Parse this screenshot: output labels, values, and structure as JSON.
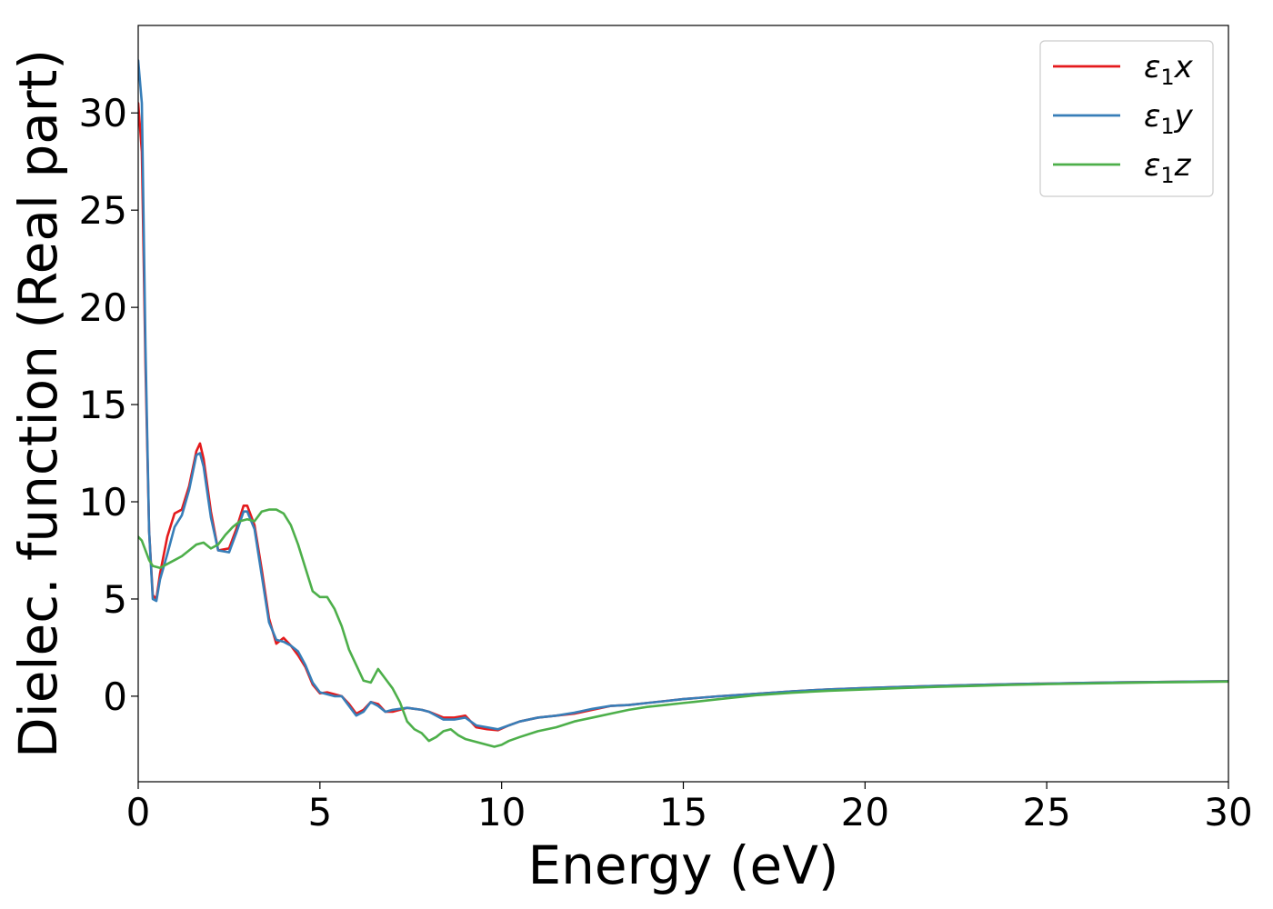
{
  "chart_data": {
    "type": "line",
    "title": "",
    "xlabel": "Energy (eV)",
    "ylabel": "Dielec. function (Real part)",
    "xlim": [
      0,
      30
    ],
    "ylim": [
      -4.4,
      34.5
    ],
    "xticks": [
      0,
      5,
      10,
      15,
      20,
      25,
      30
    ],
    "yticks": [
      0,
      5,
      10,
      15,
      20,
      25,
      30
    ],
    "grid": false,
    "legend": {
      "position": "top-right"
    },
    "series": [
      {
        "name": "ε₁x",
        "label_main": "ε",
        "label_sub": "1",
        "label_var": "x",
        "color": "#e41a1c",
        "x": [
          0.0,
          0.1,
          0.2,
          0.3,
          0.4,
          0.5,
          0.6,
          0.8,
          1.0,
          1.2,
          1.4,
          1.6,
          1.7,
          1.8,
          2.0,
          2.2,
          2.5,
          2.7,
          2.9,
          3.0,
          3.2,
          3.4,
          3.6,
          3.8,
          4.0,
          4.2,
          4.4,
          4.6,
          4.8,
          5.0,
          5.2,
          5.4,
          5.6,
          5.8,
          6.0,
          6.2,
          6.4,
          6.6,
          6.8,
          7.0,
          7.4,
          7.8,
          8.0,
          8.4,
          8.7,
          9.0,
          9.3,
          9.6,
          9.9,
          10.2,
          10.5,
          11.0,
          11.5,
          12.0,
          12.5,
          13.0,
          13.5,
          14.0,
          14.5,
          15.0,
          16.0,
          17.0,
          18.0,
          19.0,
          20.0,
          21.0,
          22.0,
          23.0,
          24.0,
          25.0,
          26.0,
          27.0,
          28.0,
          29.0,
          30.0
        ],
        "y": [
          30.5,
          28.0,
          17.0,
          8.5,
          5.2,
          5.0,
          6.3,
          8.2,
          9.4,
          9.6,
          10.8,
          12.6,
          13.0,
          12.2,
          9.5,
          7.5,
          7.6,
          8.6,
          9.8,
          9.8,
          8.8,
          6.5,
          4.0,
          2.7,
          3.0,
          2.6,
          2.1,
          1.5,
          0.6,
          0.15,
          0.2,
          0.1,
          0.0,
          -0.4,
          -0.9,
          -0.7,
          -0.3,
          -0.4,
          -0.8,
          -0.8,
          -0.6,
          -0.7,
          -0.8,
          -1.1,
          -1.1,
          -1.0,
          -1.6,
          -1.7,
          -1.75,
          -1.5,
          -1.3,
          -1.1,
          -1.0,
          -0.9,
          -0.7,
          -0.5,
          -0.45,
          -0.35,
          -0.25,
          -0.15,
          0.0,
          0.12,
          0.25,
          0.35,
          0.42,
          0.48,
          0.53,
          0.58,
          0.62,
          0.65,
          0.68,
          0.71,
          0.73,
          0.75,
          0.77
        ]
      },
      {
        "name": "ε₁y",
        "label_main": "ε",
        "label_sub": "1",
        "label_var": "y",
        "color": "#377eb8",
        "x": [
          0.0,
          0.1,
          0.2,
          0.3,
          0.4,
          0.5,
          0.6,
          0.8,
          1.0,
          1.2,
          1.4,
          1.6,
          1.7,
          1.8,
          2.0,
          2.2,
          2.5,
          2.7,
          2.9,
          3.0,
          3.2,
          3.4,
          3.6,
          3.8,
          4.0,
          4.2,
          4.4,
          4.6,
          4.8,
          5.0,
          5.2,
          5.4,
          5.6,
          5.8,
          6.0,
          6.2,
          6.4,
          6.6,
          6.8,
          7.0,
          7.4,
          7.8,
          8.0,
          8.4,
          8.7,
          9.0,
          9.3,
          9.6,
          9.9,
          10.2,
          10.5,
          11.0,
          11.5,
          12.0,
          12.5,
          13.0,
          13.5,
          14.0,
          14.5,
          15.0,
          16.0,
          17.0,
          18.0,
          19.0,
          20.0,
          21.0,
          22.0,
          23.0,
          24.0,
          25.0,
          26.0,
          27.0,
          28.0,
          29.0,
          30.0
        ],
        "y": [
          32.7,
          30.5,
          18.0,
          8.5,
          5.0,
          4.9,
          6.0,
          7.3,
          8.7,
          9.3,
          10.6,
          12.4,
          12.5,
          11.8,
          9.2,
          7.5,
          7.4,
          8.4,
          9.5,
          9.5,
          8.6,
          6.2,
          3.8,
          2.9,
          2.8,
          2.6,
          2.3,
          1.6,
          0.7,
          0.2,
          0.1,
          0.0,
          0.0,
          -0.5,
          -1.0,
          -0.8,
          -0.3,
          -0.5,
          -0.8,
          -0.7,
          -0.6,
          -0.7,
          -0.8,
          -1.2,
          -1.2,
          -1.1,
          -1.5,
          -1.6,
          -1.7,
          -1.5,
          -1.3,
          -1.1,
          -1.0,
          -0.85,
          -0.65,
          -0.5,
          -0.45,
          -0.35,
          -0.25,
          -0.15,
          0.0,
          0.12,
          0.25,
          0.35,
          0.42,
          0.48,
          0.53,
          0.58,
          0.62,
          0.65,
          0.68,
          0.71,
          0.73,
          0.75,
          0.77
        ]
      },
      {
        "name": "ε₁z",
        "label_main": "ε",
        "label_sub": "1",
        "label_var": "z",
        "color": "#4daf4a",
        "x": [
          0.0,
          0.1,
          0.2,
          0.3,
          0.4,
          0.6,
          0.8,
          1.0,
          1.2,
          1.4,
          1.6,
          1.8,
          2.0,
          2.2,
          2.4,
          2.6,
          2.8,
          3.0,
          3.2,
          3.4,
          3.6,
          3.8,
          4.0,
          4.2,
          4.4,
          4.6,
          4.8,
          5.0,
          5.2,
          5.4,
          5.6,
          5.8,
          6.0,
          6.2,
          6.4,
          6.6,
          6.8,
          7.0,
          7.2,
          7.4,
          7.6,
          7.8,
          8.0,
          8.2,
          8.4,
          8.6,
          8.8,
          9.0,
          9.2,
          9.4,
          9.6,
          9.8,
          10.0,
          10.2,
          10.5,
          11.0,
          11.5,
          12.0,
          12.5,
          13.0,
          13.5,
          14.0,
          14.5,
          15.0,
          16.0,
          17.0,
          18.0,
          19.0,
          20.0,
          21.0,
          22.0,
          23.0,
          24.0,
          25.0,
          26.0,
          27.0,
          28.0,
          29.0,
          30.0
        ],
        "y": [
          8.2,
          8.0,
          7.5,
          7.0,
          6.7,
          6.6,
          6.8,
          7.0,
          7.2,
          7.5,
          7.8,
          7.9,
          7.6,
          7.8,
          8.3,
          8.7,
          9.0,
          9.1,
          9.0,
          9.5,
          9.6,
          9.6,
          9.4,
          8.8,
          7.8,
          6.6,
          5.4,
          5.1,
          5.1,
          4.5,
          3.6,
          2.4,
          1.6,
          0.8,
          0.7,
          1.4,
          0.9,
          0.4,
          -0.3,
          -1.3,
          -1.7,
          -1.9,
          -2.3,
          -2.1,
          -1.8,
          -1.7,
          -2.0,
          -2.2,
          -2.3,
          -2.4,
          -2.5,
          -2.6,
          -2.5,
          -2.3,
          -2.1,
          -1.8,
          -1.6,
          -1.3,
          -1.1,
          -0.9,
          -0.7,
          -0.55,
          -0.45,
          -0.35,
          -0.15,
          0.05,
          0.18,
          0.28,
          0.35,
          0.42,
          0.48,
          0.53,
          0.58,
          0.62,
          0.65,
          0.68,
          0.71,
          0.73,
          0.75
        ]
      }
    ]
  }
}
